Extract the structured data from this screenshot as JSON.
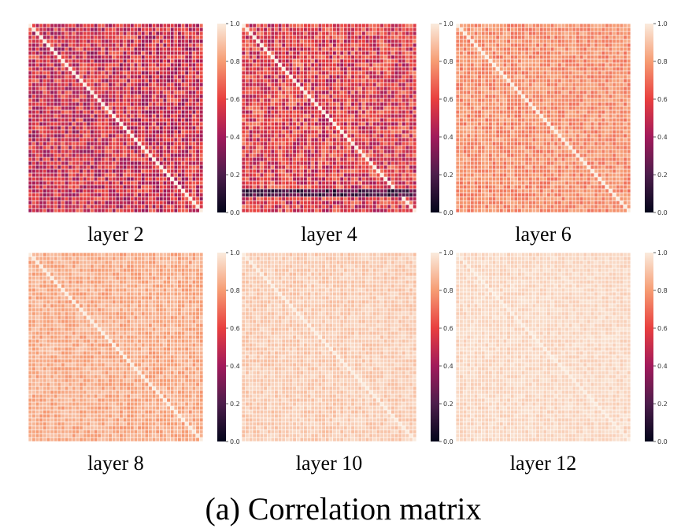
{
  "figure": {
    "caption": "(a) Correlation matrix"
  },
  "colors": {
    "colormap": [
      "#03051a",
      "#4c1d4b",
      "#a11a5b",
      "#e83f3f",
      "#f69c73",
      "#faebdd"
    ],
    "grid_line": "#ffffff"
  },
  "chart_data": [
    {
      "type": "heatmap",
      "title": "layer 2",
      "matrix_size": 48,
      "colorbar": {
        "range": [
          0.0,
          1.0
        ],
        "ticks": [
          "0.0",
          "0.2",
          "0.4",
          "0.6",
          "0.8",
          "1.0"
        ]
      },
      "diagonal_value": 1.0,
      "typical_off_diagonal_range": [
        0.35,
        0.7
      ]
    },
    {
      "type": "heatmap",
      "title": "layer 4",
      "matrix_size": 48,
      "colorbar": {
        "range": [
          0.0,
          1.0
        ],
        "ticks": [
          "0.0",
          "0.2",
          "0.4",
          "0.6",
          "0.8",
          "1.0"
        ]
      },
      "diagonal_value": 1.0,
      "typical_off_diagonal_range": [
        0.4,
        0.75
      ],
      "low_rows_near_bottom": [
        0.05,
        0.35
      ]
    },
    {
      "type": "heatmap",
      "title": "layer 6",
      "matrix_size": 48,
      "colorbar": {
        "range": [
          0.0,
          1.0
        ],
        "ticks": [
          "0.0",
          "0.2",
          "0.4",
          "0.6",
          "0.8",
          "1.0"
        ]
      },
      "diagonal_value": 1.0,
      "typical_off_diagonal_range": [
        0.7,
        0.85
      ]
    },
    {
      "type": "heatmap",
      "title": "layer 8",
      "matrix_size": 48,
      "colorbar": {
        "range": [
          0.0,
          1.0
        ],
        "ticks": [
          "0.0",
          "0.2",
          "0.4",
          "0.6",
          "0.8",
          "1.0"
        ]
      },
      "diagonal_value": 1.0,
      "typical_off_diagonal_range": [
        0.78,
        0.9
      ]
    },
    {
      "type": "heatmap",
      "title": "layer 10",
      "matrix_size": 48,
      "colorbar": {
        "range": [
          0.0,
          1.0
        ],
        "ticks": [
          "0.0",
          "0.2",
          "0.4",
          "0.6",
          "0.8",
          "1.0"
        ]
      },
      "diagonal_value": 1.0,
      "typical_off_diagonal_range": [
        0.88,
        0.96
      ]
    },
    {
      "type": "heatmap",
      "title": "layer 12",
      "matrix_size": 48,
      "colorbar": {
        "range": [
          0.0,
          1.0
        ],
        "ticks": [
          "0.0",
          "0.2",
          "0.4",
          "0.6",
          "0.8",
          "1.0"
        ]
      },
      "diagonal_value": 1.0,
      "typical_off_diagonal_range": [
        0.92,
        0.98
      ]
    }
  ]
}
